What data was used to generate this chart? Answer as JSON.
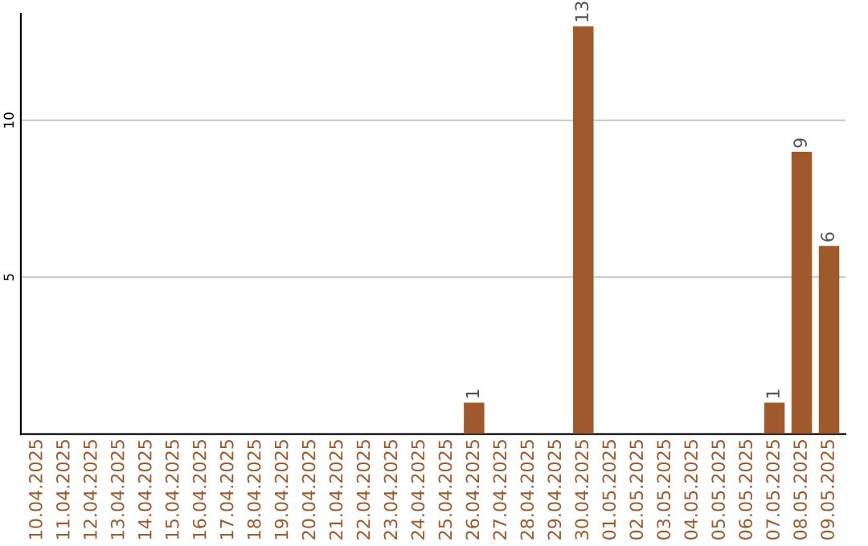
{
  "chart_data": {
    "type": "bar",
    "categories": [
      "10.04.2025",
      "11.04.2025",
      "12.04.2025",
      "13.04.2025",
      "14.04.2025",
      "15.04.2025",
      "16.04.2025",
      "17.04.2025",
      "18.04.2025",
      "19.04.2025",
      "20.04.2025",
      "21.04.2025",
      "22.04.2025",
      "23.04.2025",
      "24.04.2025",
      "25.04.2025",
      "26.04.2025",
      "27.04.2025",
      "28.04.2025",
      "29.04.2025",
      "30.04.2025",
      "01.05.2025",
      "02.05.2025",
      "03.05.2025",
      "04.05.2025",
      "05.05.2025",
      "06.05.2025",
      "07.05.2025",
      "08.05.2025",
      "09.05.2025"
    ],
    "values": [
      0,
      0,
      0,
      0,
      0,
      0,
      0,
      0,
      0,
      0,
      0,
      0,
      0,
      0,
      0,
      0,
      1,
      0,
      0,
      0,
      13,
      0,
      0,
      0,
      0,
      0,
      0,
      1,
      9,
      6
    ],
    "value_labels": [
      null,
      null,
      null,
      null,
      null,
      null,
      null,
      null,
      null,
      null,
      null,
      null,
      null,
      null,
      null,
      null,
      "1",
      null,
      null,
      null,
      "13",
      null,
      null,
      null,
      null,
      null,
      null,
      "1",
      "9",
      "6"
    ],
    "color": "#a0592a",
    "ylim": [
      0,
      13.4
    ],
    "yticks": [
      5,
      10
    ],
    "grid": "y"
  }
}
